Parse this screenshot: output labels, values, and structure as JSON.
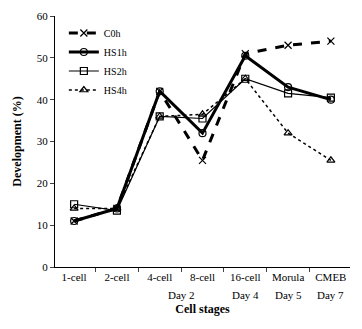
{
  "chart_data": {
    "type": "line",
    "x_label": "Cell stages",
    "y_label": "Development (%)",
    "categories": [
      "1-cell",
      "2-cell",
      "4-cell",
      "8-cell",
      "16-cell",
      "Morula",
      "CMEB"
    ],
    "annotations": [
      {
        "text": "Day 2",
        "x": [
          "4-cell",
          "8-cell"
        ]
      },
      {
        "text": "Day 4",
        "x": [
          "16-cell"
        ]
      },
      {
        "text": "Day 5",
        "x": [
          "Morula"
        ]
      },
      {
        "text": "Day 7",
        "x": [
          "CMEB"
        ]
      }
    ],
    "series": [
      {
        "name": "C0h",
        "color": "#000000",
        "marker": "x",
        "line_style": "dash",
        "values": [
          11,
          14,
          42,
          25.5,
          51,
          53,
          54
        ]
      },
      {
        "name": "HS1h",
        "color": "#000000",
        "marker": "circle-open",
        "line_style": "solid",
        "values": [
          11,
          14,
          42,
          32,
          50.5,
          43,
          40
        ]
      },
      {
        "name": "HS2h",
        "color": "#000000",
        "marker": "square-open",
        "line_style": "solid",
        "values": [
          15,
          13.5,
          36,
          35.5,
          45,
          41.5,
          40.5
        ]
      },
      {
        "name": "HS4h",
        "color": "#000000",
        "marker": "triangle-up-open",
        "line_style": "dot",
        "values": [
          14,
          14,
          36,
          36.5,
          45,
          32,
          25.5
        ]
      }
    ],
    "ylim": [
      0,
      60
    ],
    "yticks": [
      0,
      10,
      20,
      30,
      40,
      50,
      60
    ],
    "legend": "upper left",
    "grid": false
  }
}
